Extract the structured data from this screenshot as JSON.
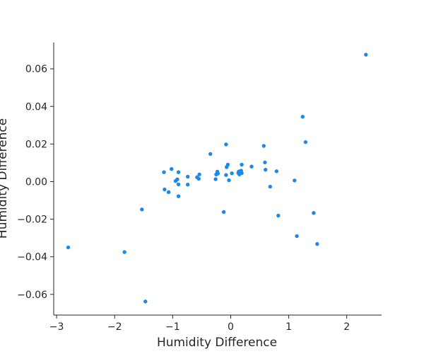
{
  "chart_data": {
    "type": "scatter",
    "title": "",
    "xlabel": "Humidity Difference",
    "ylabel": "Humidity Difference",
    "xlim": [
      -3.05,
      2.6
    ],
    "ylim": [
      -0.071,
      0.074
    ],
    "x_ticks": [
      -3,
      -2,
      -1,
      0,
      1,
      2
    ],
    "x_tick_labels": [
      "−3",
      "−2",
      "−1",
      "0",
      "1",
      "2"
    ],
    "y_ticks": [
      -0.06,
      -0.04,
      -0.02,
      0.0,
      0.02,
      0.04,
      0.06
    ],
    "y_tick_labels": [
      "−0.06",
      "−0.04",
      "−0.02",
      "0.00",
      "0.02",
      "0.04",
      "0.06"
    ],
    "grid": false,
    "point_color": "#1f88e5",
    "points": [
      [
        -2.8,
        -0.035
      ],
      [
        -1.83,
        -0.0375
      ],
      [
        -1.53,
        -0.0148
      ],
      [
        -1.47,
        -0.0638
      ],
      [
        -1.15,
        0.005
      ],
      [
        -1.14,
        -0.0042
      ],
      [
        -1.07,
        -0.0056
      ],
      [
        -1.02,
        0.0067
      ],
      [
        -0.95,
        0.0003
      ],
      [
        -0.92,
        0.0012
      ],
      [
        -0.9,
        -0.0015
      ],
      [
        -0.9,
        0.005
      ],
      [
        -0.9,
        -0.0078
      ],
      [
        -0.74,
        0.0026
      ],
      [
        -0.74,
        -0.0016
      ],
      [
        -0.58,
        0.0023
      ],
      [
        -0.55,
        0.0015
      ],
      [
        -0.54,
        0.0038
      ],
      [
        -0.35,
        0.0147
      ],
      [
        -0.26,
        0.0013
      ],
      [
        -0.25,
        0.0038
      ],
      [
        -0.23,
        0.0053
      ],
      [
        -0.22,
        0.0043
      ],
      [
        -0.12,
        -0.0162
      ],
      [
        -0.08,
        0.0035
      ],
      [
        -0.08,
        0.0198
      ],
      [
        -0.07,
        0.0077
      ],
      [
        -0.05,
        0.009
      ],
      [
        -0.03,
        0.0007
      ],
      [
        0.02,
        0.0044
      ],
      [
        0.13,
        0.0046
      ],
      [
        0.14,
        0.0054
      ],
      [
        0.15,
        0.0038
      ],
      [
        0.18,
        0.0058
      ],
      [
        0.19,
        0.0045
      ],
      [
        0.19,
        0.009
      ],
      [
        0.36,
        0.008
      ],
      [
        0.57,
        0.019
      ],
      [
        0.59,
        0.0102
      ],
      [
        0.6,
        0.0063
      ],
      [
        0.68,
        -0.0027
      ],
      [
        0.79,
        0.0055
      ],
      [
        0.82,
        -0.0181
      ],
      [
        1.1,
        0.0006
      ],
      [
        1.14,
        -0.029
      ],
      [
        1.24,
        0.0345
      ],
      [
        1.29,
        0.021
      ],
      [
        1.43,
        -0.0167
      ],
      [
        1.49,
        -0.0332
      ],
      [
        2.33,
        0.0675
      ]
    ]
  }
}
